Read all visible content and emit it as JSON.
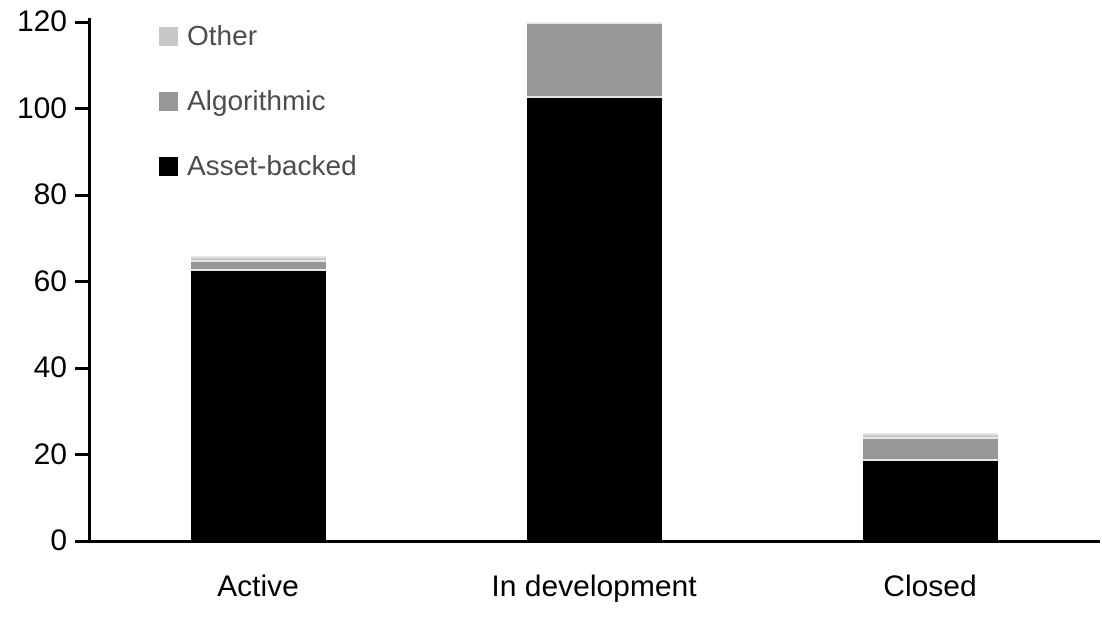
{
  "chart_data": {
    "type": "bar",
    "stacked": true,
    "title": "",
    "xlabel": "",
    "ylabel": "",
    "categories": [
      "Active",
      "In development",
      "Closed"
    ],
    "series": [
      {
        "name": "Asset-backed",
        "color": "#000000",
        "values": [
          63,
          103,
          19
        ]
      },
      {
        "name": "Algorithmic",
        "color": "#979797",
        "values": [
          2,
          17,
          5
        ]
      },
      {
        "name": "Other",
        "color": "#c7c7c7",
        "values": [
          1,
          0,
          1
        ]
      }
    ],
    "stack_totals": [
      66,
      120,
      25
    ],
    "ylim": [
      0,
      120
    ],
    "yticks": [
      0,
      20,
      40,
      60,
      80,
      100,
      120
    ],
    "grid": false,
    "legend_position": "top-left",
    "legend_order_top_to_bottom": [
      "Other",
      "Algorithmic",
      "Asset-backed"
    ]
  },
  "colors": {
    "axis": "#000000",
    "legend_text": "#4d4d4d",
    "segment_divider": "#e6e6e6",
    "background": "#ffffff"
  }
}
